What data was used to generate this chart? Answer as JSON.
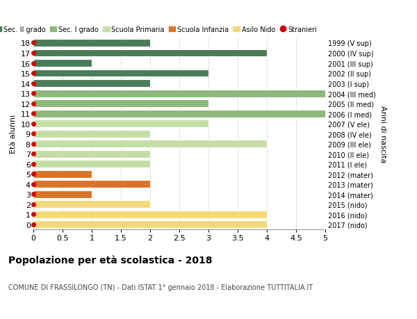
{
  "ages": [
    18,
    17,
    16,
    15,
    14,
    13,
    12,
    11,
    10,
    9,
    8,
    7,
    6,
    5,
    4,
    3,
    2,
    1,
    0
  ],
  "years": [
    "1999 (V sup)",
    "2000 (IV sup)",
    "2001 (III sup)",
    "2002 (II sup)",
    "2003 (I sup)",
    "2004 (III med)",
    "2005 (II med)",
    "2006 (I med)",
    "2007 (V ele)",
    "2008 (IV ele)",
    "2009 (III ele)",
    "2010 (II ele)",
    "2011 (I ele)",
    "2012 (mater)",
    "2013 (mater)",
    "2014 (mater)",
    "2015 (nido)",
    "2016 (nido)",
    "2017 (nido)"
  ],
  "values": [
    2,
    4,
    1,
    3,
    2,
    5,
    3,
    5,
    3,
    2,
    4,
    2,
    2,
    1,
    2,
    1,
    2,
    4,
    4
  ],
  "colors": [
    "#4a7c59",
    "#4a7c59",
    "#4a7c59",
    "#4a7c59",
    "#4a7c59",
    "#8db87a",
    "#8db87a",
    "#8db87a",
    "#c5dea8",
    "#c5dea8",
    "#c5dea8",
    "#c5dea8",
    "#c5dea8",
    "#d9742a",
    "#d9742a",
    "#d9742a",
    "#f5d87a",
    "#f5d87a",
    "#f5d87a"
  ],
  "stranieri_color": "#cc0000",
  "legend_labels": [
    "Sec. II grado",
    "Sec. I grado",
    "Scuola Primaria",
    "Scuola Infanzia",
    "Asilo Nido",
    "Stranieri"
  ],
  "legend_colors": [
    "#4a7c59",
    "#8db87a",
    "#c5dea8",
    "#d9742a",
    "#f5d87a",
    "#cc0000"
  ],
  "title": "Popolazione per età scolastica - 2018",
  "subtitle": "COMUNE DI FRASSILONGO (TN) - Dati ISTAT 1° gennaio 2018 - Elaborazione TUTTITALIA.IT",
  "ylabel_left": "Età alunni",
  "ylabel_right": "Anni di nascita",
  "xlim": [
    0,
    5.0
  ],
  "xticks": [
    0,
    0.5,
    1.0,
    1.5,
    2.0,
    2.5,
    3.0,
    3.5,
    4.0,
    4.5,
    5.0
  ],
  "bg_color": "#ffffff",
  "bar_height": 0.75,
  "grid_color": "#cccccc"
}
